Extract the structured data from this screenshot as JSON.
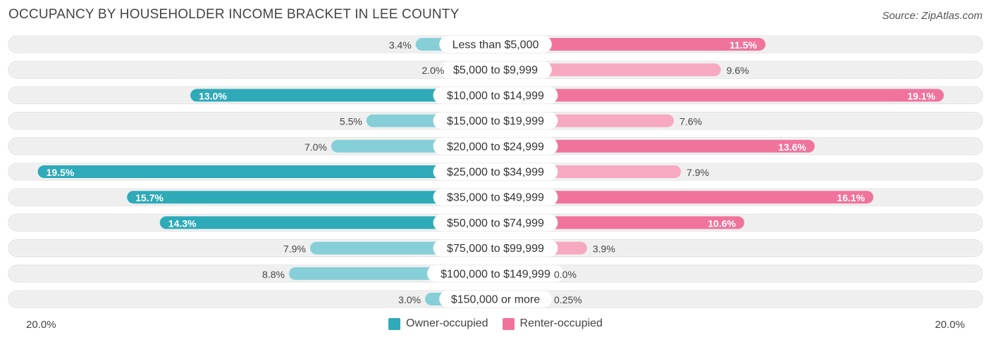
{
  "title": "OCCUPANCY BY HOUSEHOLDER INCOME BRACKET IN LEE COUNTY",
  "source": "Source: ZipAtlas.com",
  "colors": {
    "owner": "#2eaab8",
    "owner_light": "#86cfd8",
    "renter": "#f0739c",
    "renter_light": "#f6a9c1",
    "row_bg": "#efefef"
  },
  "legend": {
    "owner": "Owner-occupied",
    "renter": "Renter-occupied"
  },
  "axis": {
    "left_label": "20.0%",
    "right_label": "20.0%"
  },
  "chart_data": {
    "type": "bar",
    "orientation": "horizontal-diverging",
    "title": "OCCUPANCY BY HOUSEHOLDER INCOME BRACKET IN LEE COUNTY",
    "xlim": [
      -20,
      20
    ],
    "categories": [
      "Less than $5,000",
      "$5,000 to $9,999",
      "$10,000 to $14,999",
      "$15,000 to $19,999",
      "$20,000 to $24,999",
      "$25,000 to $34,999",
      "$35,000 to $49,999",
      "$50,000 to $74,999",
      "$75,000 to $99,999",
      "$100,000 to $149,999",
      "$150,000 or more"
    ],
    "series": [
      {
        "name": "Owner-occupied",
        "values": [
          3.4,
          2.0,
          13.0,
          5.5,
          7.0,
          19.5,
          15.7,
          14.3,
          7.9,
          8.8,
          3.0
        ],
        "labels": [
          "3.4%",
          "2.0%",
          "13.0%",
          "5.5%",
          "7.0%",
          "19.5%",
          "15.7%",
          "14.3%",
          "7.9%",
          "8.8%",
          "3.0%"
        ]
      },
      {
        "name": "Renter-occupied",
        "values": [
          11.5,
          9.6,
          19.1,
          7.6,
          13.6,
          7.9,
          16.1,
          10.6,
          3.9,
          0.0,
          0.25
        ],
        "labels": [
          "11.5%",
          "9.6%",
          "19.1%",
          "7.6%",
          "13.6%",
          "7.9%",
          "16.1%",
          "10.6%",
          "3.9%",
          "0.0%",
          "0.25%"
        ]
      }
    ]
  }
}
